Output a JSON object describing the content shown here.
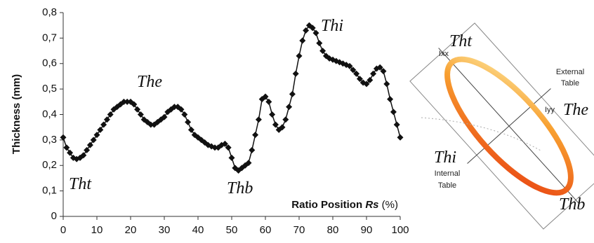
{
  "chart_data": {
    "type": "line",
    "y_label": "Thickness (mm)",
    "x_label": [
      "Ratio Position",
      "Rs",
      "(%)"
    ],
    "color": "#111111",
    "x": [
      0,
      1,
      2,
      3,
      4,
      5,
      6,
      7,
      8,
      9,
      10,
      11,
      12,
      13,
      14,
      15,
      16,
      17,
      18,
      19,
      20,
      21,
      22,
      23,
      24,
      25,
      26,
      27,
      28,
      29,
      30,
      31,
      32,
      33,
      34,
      35,
      36,
      37,
      38,
      39,
      40,
      41,
      42,
      43,
      44,
      45,
      46,
      47,
      48,
      49,
      50,
      51,
      52,
      53,
      54,
      55,
      56,
      57,
      58,
      59,
      60,
      61,
      62,
      63,
      64,
      65,
      66,
      67,
      68,
      69,
      70,
      71,
      72,
      73,
      74,
      75,
      76,
      77,
      78,
      79,
      80,
      81,
      82,
      83,
      84,
      85,
      86,
      87,
      88,
      89,
      90,
      91,
      92,
      93,
      94,
      95,
      96,
      97,
      98,
      99,
      100
    ],
    "values": [
      0.31,
      0.27,
      0.25,
      0.23,
      0.225,
      0.23,
      0.24,
      0.26,
      0.28,
      0.3,
      0.32,
      0.34,
      0.36,
      0.38,
      0.4,
      0.42,
      0.43,
      0.44,
      0.45,
      0.45,
      0.45,
      0.44,
      0.42,
      0.4,
      0.38,
      0.37,
      0.36,
      0.36,
      0.37,
      0.38,
      0.39,
      0.41,
      0.42,
      0.43,
      0.43,
      0.42,
      0.4,
      0.37,
      0.34,
      0.32,
      0.31,
      0.3,
      0.29,
      0.28,
      0.275,
      0.27,
      0.27,
      0.28,
      0.285,
      0.27,
      0.23,
      0.19,
      0.18,
      0.19,
      0.2,
      0.21,
      0.26,
      0.32,
      0.38,
      0.46,
      0.47,
      0.45,
      0.4,
      0.36,
      0.34,
      0.35,
      0.38,
      0.43,
      0.48,
      0.56,
      0.63,
      0.69,
      0.73,
      0.75,
      0.74,
      0.72,
      0.68,
      0.65,
      0.63,
      0.62,
      0.615,
      0.61,
      0.605,
      0.6,
      0.595,
      0.59,
      0.575,
      0.56,
      0.54,
      0.525,
      0.52,
      0.535,
      0.56,
      0.58,
      0.585,
      0.57,
      0.52,
      0.46,
      0.41,
      0.36,
      0.31
    ],
    "xlim": [
      0,
      100
    ],
    "xticks": [
      0,
      10,
      20,
      30,
      40,
      50,
      60,
      70,
      80,
      90,
      100
    ],
    "ylim": [
      0,
      0.8
    ],
    "yticks": [
      {
        "value": 0,
        "label": "0"
      },
      {
        "value": 0.1,
        "label": "0,1"
      },
      {
        "value": 0.2,
        "label": "0,2"
      },
      {
        "value": 0.3,
        "label": "0,3"
      },
      {
        "value": 0.4,
        "label": "0,4"
      },
      {
        "value": 0.5,
        "label": "0,5"
      },
      {
        "value": 0.6,
        "label": "0,6"
      },
      {
        "value": 0.7,
        "label": "0,7"
      },
      {
        "value": 0.8,
        "label": "0,8"
      }
    ],
    "annotations": [
      "Tht",
      "The",
      "Thb",
      "Thi"
    ]
  },
  "diagram": {
    "labels": {
      "tht": "Tht",
      "the": "The",
      "thi": "Thi",
      "thb": "Thb",
      "ixx": "Ixx",
      "iyy": "Iyy",
      "external": [
        "External",
        "Table"
      ],
      "internal": [
        "Internal",
        "Table"
      ]
    }
  }
}
